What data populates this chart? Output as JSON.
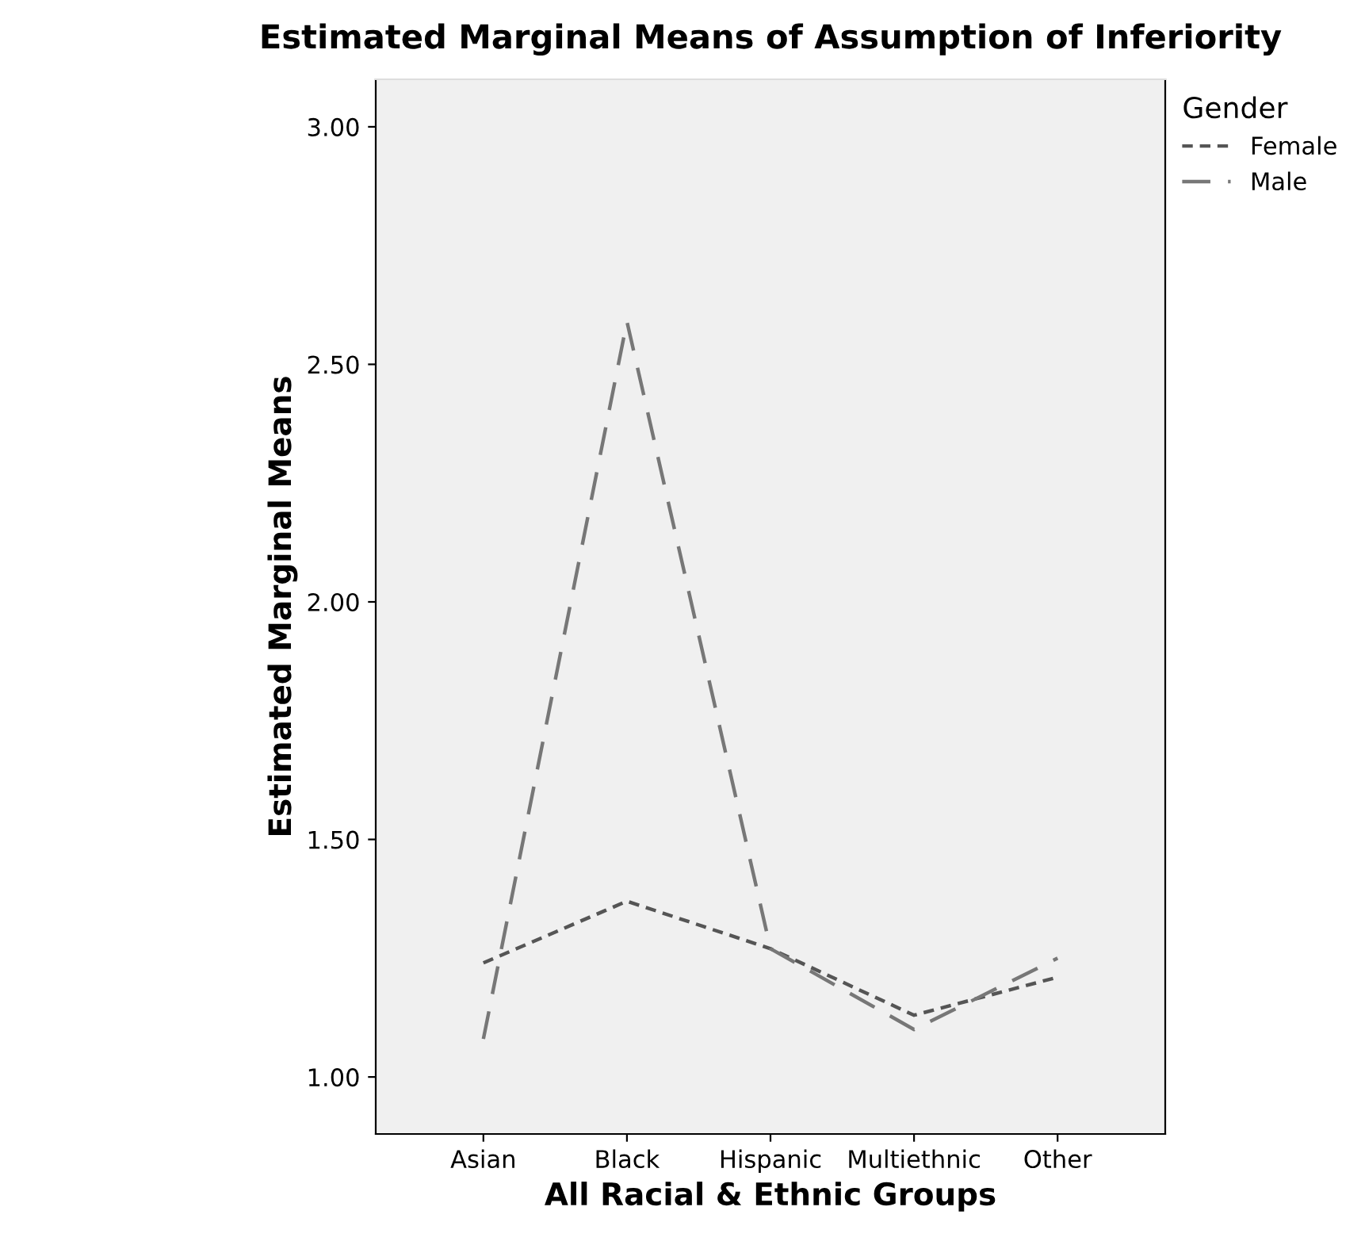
{
  "chart_data": {
    "type": "line",
    "title": "Estimated Marginal Means of Assumption of Inferiority",
    "xlabel": "All Racial & Ethnic Groups",
    "ylabel": "Estimated Marginal Means",
    "legend_title": "Gender",
    "categories": [
      "Asian",
      "Black",
      "Hispanic",
      "Multiethnic",
      "Other"
    ],
    "series": [
      {
        "name": "Female",
        "color": "#555555",
        "line_style": "dotted",
        "values": [
          1.24,
          1.37,
          1.27,
          1.13,
          1.21
        ]
      },
      {
        "name": "Male",
        "color": "#777777",
        "line_style": "dashed",
        "values": [
          1.08,
          2.59,
          1.27,
          1.1,
          1.25
        ]
      }
    ],
    "ylim": [
      0.88,
      3.1
    ],
    "yticks": [
      {
        "value": 1.0,
        "label": "1.00"
      },
      {
        "value": 1.5,
        "label": "1.50"
      },
      {
        "value": 2.0,
        "label": "2.00"
      },
      {
        "value": 2.5,
        "label": "2.50"
      },
      {
        "value": 3.0,
        "label": "3.00"
      }
    ],
    "grid": false,
    "legend": "top right",
    "marker": "none"
  }
}
